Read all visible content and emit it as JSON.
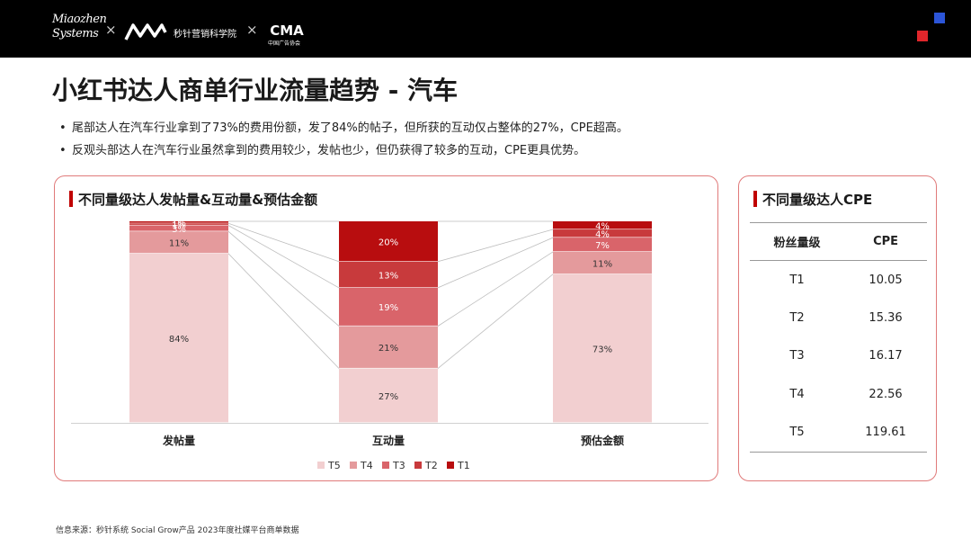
{
  "header": {
    "logo_miaozhen_line1": "Miaozhen",
    "logo_miaozhen_line2": "Systems",
    "separator": "×",
    "academy_name": "秒针营销科学院",
    "cma_logo_text": "CMA",
    "cma_sub_text": "中国广告协会"
  },
  "page": {
    "title": "小红书达人商单行业流量趋势 - 汽车",
    "bullets": [
      "尾部达人在汽车行业拿到了73%的费用份额，发了84%的帖子，但所获的互动仅占整体的27%，CPE超高。",
      "反观头部达人在汽车行业虽然拿到的费用较少，发帖也少，但仍获得了较多的互动，CPE更具优势。"
    ]
  },
  "left_panel": {
    "title": "不同量级达人发帖量&互动量&预估金额"
  },
  "right_panel": {
    "title": "不同量级达人CPE",
    "headers": [
      "粉丝量级",
      "CPE"
    ],
    "rows": [
      {
        "tier": "T1",
        "cpe": "10.05"
      },
      {
        "tier": "T2",
        "cpe": "15.36"
      },
      {
        "tier": "T3",
        "cpe": "16.17"
      },
      {
        "tier": "T4",
        "cpe": "22.56"
      },
      {
        "tier": "T5",
        "cpe": "119.61"
      }
    ]
  },
  "footer": {
    "source": "信息来源：秒针系统  Social Grow产品  2023年度社媒平台商单数据"
  },
  "chart_data": {
    "type": "bar",
    "stacked": true,
    "normalized_percent": true,
    "categories": [
      "发帖量",
      "互动量",
      "预估金额"
    ],
    "series": [
      {
        "name": "T5",
        "color": "#f2cfd0",
        "values": [
          84,
          27,
          73
        ]
      },
      {
        "name": "T4",
        "color": "#e49a9c",
        "values": [
          11,
          21,
          11
        ]
      },
      {
        "name": "T3",
        "color": "#d9646a",
        "values": [
          3,
          19,
          7
        ]
      },
      {
        "name": "T2",
        "color": "#c83a3c",
        "values": [
          1,
          13,
          4
        ]
      },
      {
        "name": "T1",
        "color": "#b80d0f",
        "values": [
          1,
          20,
          4
        ]
      }
    ],
    "data_labels": [
      [
        "84%",
        "27%",
        "73%"
      ],
      [
        "11%",
        "21%",
        "11%"
      ],
      [
        "3%",
        "19%",
        "7%"
      ],
      [
        "1%",
        "13%",
        "4%"
      ],
      [
        "1%",
        "20%",
        "4%"
      ]
    ],
    "ylim": [
      0,
      100
    ],
    "legend_position": "bottom",
    "connector_lines": true
  }
}
